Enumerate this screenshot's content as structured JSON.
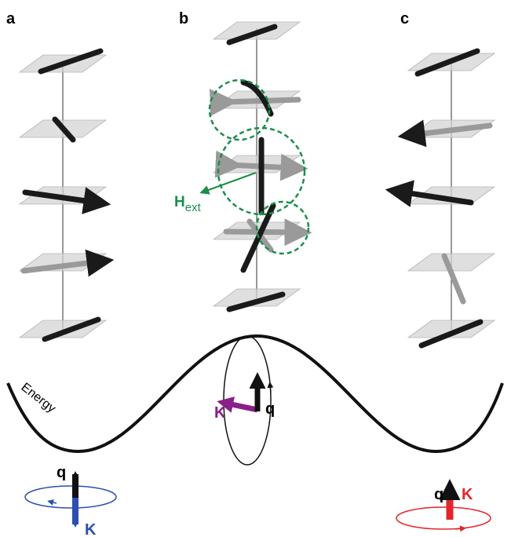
{
  "panels": [
    {
      "label": "a"
    },
    {
      "label": "b"
    },
    {
      "label": "c"
    }
  ],
  "field_label": {
    "symbol": "H",
    "subscript": "ext"
  },
  "energy_label": "Energy",
  "states": [
    {
      "q_label": "q",
      "k_label": "K"
    },
    {
      "q_label": "q",
      "k_label": "K"
    },
    {
      "q_label": "q",
      "k_label": "K"
    }
  ]
}
